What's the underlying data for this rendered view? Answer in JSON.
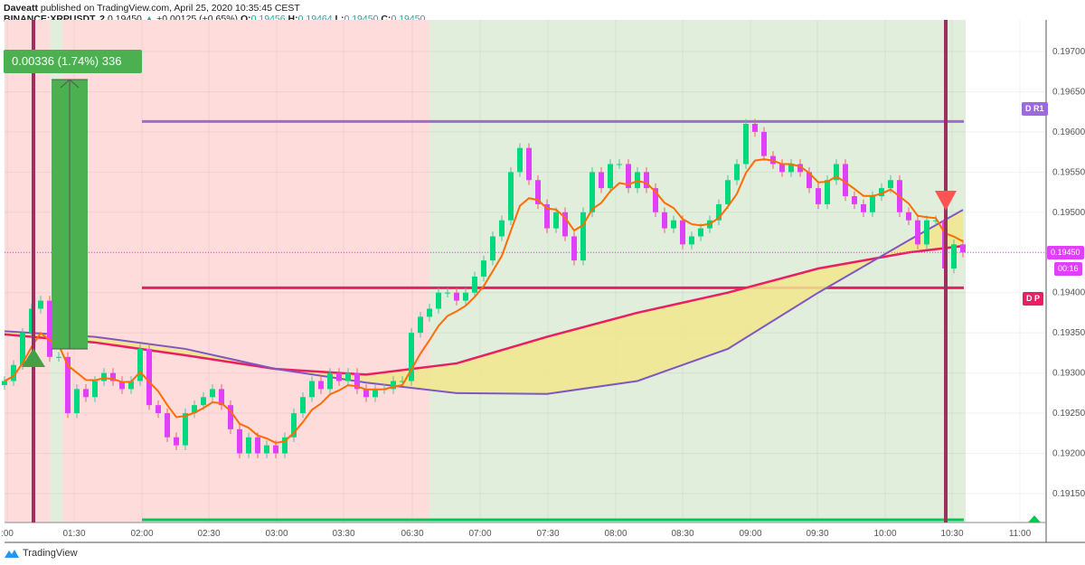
{
  "header": {
    "author": "Daveatt",
    "published": "published on TradingView.com, April 25, 2020 10:35:45 CEST",
    "symbol": "BINANCE:XRPUSDT, 2",
    "last": "0.19450",
    "change": "+0.00125 (+0.65%)",
    "o_label": "O:",
    "o": "0.19456",
    "h_label": "H:",
    "h": "0.19464",
    "l_label": "L:",
    "l": "0.19450",
    "c_label": "C:",
    "c": "0.19450"
  },
  "measure_label": "0.00336 (1.74%) 336",
  "tags": {
    "dr1": "D R1",
    "dp": "D P",
    "price": "0.19450",
    "countdown": "00:16"
  },
  "footer": {
    "brand": "TradingView"
  },
  "colors": {
    "up": "#00d97e",
    "down": "#e040fb",
    "bg_bear": "#ffdcdc",
    "bg_bull": "#e1eedb",
    "ema_fast": "#ff6d00",
    "ema_slow": "#e91e63",
    "ma": "#7e57c2",
    "fill": "#f0e68c",
    "r1": "#9c6ade",
    "pivot": "#e91e63",
    "s_line": "#00c853",
    "signal_bar": "#9c3060"
  },
  "chart_data": {
    "type": "candlestick",
    "symbol": "XRPUSDT",
    "interval": "2",
    "y_ticks": [
      "0.19700",
      "0.19650",
      "0.19600",
      "0.19550",
      "0.19500",
      "0.19450",
      "0.19400",
      "0.19350",
      "0.19300",
      "0.19250",
      "0.19200",
      "0.19150"
    ],
    "ylim": [
      0.19117,
      0.19735
    ],
    "x_ticks": [
      ":00",
      "01:30",
      "02:00",
      "02:30",
      "03:00",
      "03:30",
      "06:30",
      "07:00",
      "07:30",
      "08:00",
      "08:30",
      "09:00",
      "09:30",
      "10:00",
      "10:30",
      "11:00"
    ],
    "closes": [
      0.1929,
      0.1931,
      0.1935,
      0.1938,
      0.1939,
      0.1932,
      0.1932,
      0.1925,
      0.1928,
      0.1927,
      0.1929,
      0.193,
      0.1929,
      0.1928,
      0.1929,
      0.1933,
      0.1926,
      0.1925,
      0.1922,
      0.1921,
      0.1925,
      0.1926,
      0.1927,
      0.1928,
      0.1926,
      0.1923,
      0.192,
      0.1922,
      0.192,
      0.1921,
      0.192,
      0.1922,
      0.1925,
      0.1927,
      0.1929,
      0.1928,
      0.193,
      0.1929,
      0.193,
      0.1928,
      0.1927,
      0.1928,
      0.1928,
      0.1929,
      0.1929,
      0.1935,
      0.1937,
      0.1938,
      0.194,
      0.194,
      0.1939,
      0.194,
      0.1942,
      0.1944,
      0.1947,
      0.1949,
      0.1955,
      0.1958,
      0.1954,
      0.1951,
      0.1948,
      0.195,
      0.1947,
      0.1944,
      0.195,
      0.1955,
      0.1953,
      0.1956,
      0.1956,
      0.1953,
      0.1955,
      0.1953,
      0.195,
      0.1948,
      0.1949,
      0.1946,
      0.1947,
      0.1948,
      0.1949,
      0.1951,
      0.1954,
      0.1956,
      0.1961,
      0.196,
      0.1957,
      0.1956,
      0.1955,
      0.1956,
      0.1955,
      0.1953,
      0.1951,
      0.1954,
      0.1956,
      0.1952,
      0.1951,
      0.195,
      0.1952,
      0.1953,
      0.1954,
      0.195,
      0.1949,
      0.1946,
      0.1949,
      0.1949,
      0.1943,
      0.1946,
      0.1945
    ],
    "ma_purple": [
      0.19352,
      0.19345,
      0.1933,
      0.19305,
      0.19288,
      0.19275,
      0.19274,
      0.1929,
      0.1933,
      0.194,
      0.19465,
      0.19503
    ],
    "ema_red": [
      0.19348,
      0.19338,
      0.19322,
      0.19305,
      0.19298,
      0.19312,
      0.19345,
      0.19375,
      0.194,
      0.1943,
      0.1945,
      0.19458
    ],
    "levels": {
      "r1": 0.19613,
      "pivot": 0.19406,
      "support": 0.19118
    },
    "current_price": 0.1945
  }
}
